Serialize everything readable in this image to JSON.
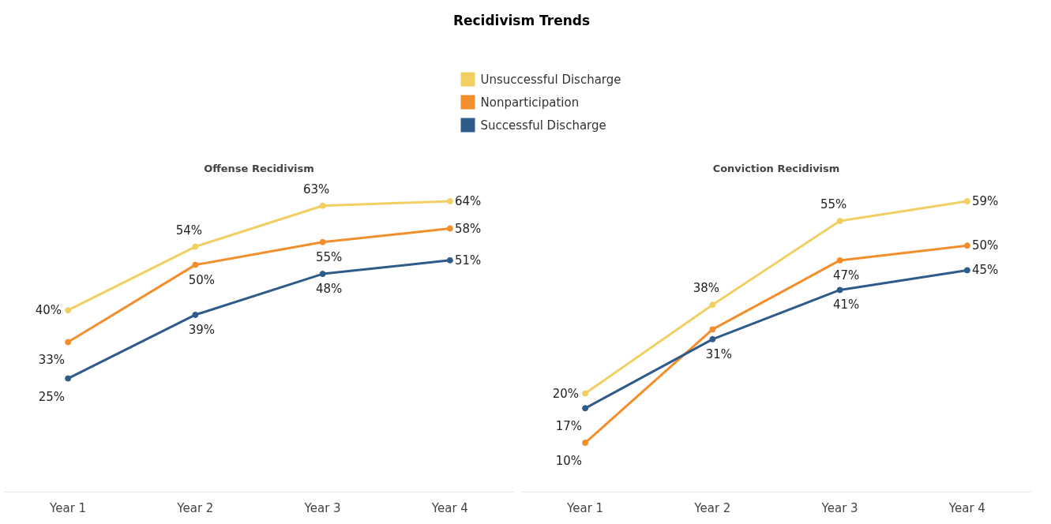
{
  "chart_data": [
    {
      "type": "line",
      "title": "Offense Recidivism",
      "annotations": [
        "Recidivism Trends"
      ],
      "legend": "top",
      "marker": "circle",
      "tick_labels": "x",
      "categories": [
        "Year 1",
        "Year 2",
        "Year 3",
        "Year 4"
      ],
      "series": [
        {
          "name": "Unsuccessful Discharge",
          "color": "#f1cf63",
          "values": [
            40,
            54,
            63,
            64
          ],
          "value_labels": [
            "40%",
            "54%",
            "63%",
            "64%"
          ]
        },
        {
          "name": "Nonparticipation",
          "color": "#f28e2b",
          "values": [
            33,
            50,
            55,
            58
          ],
          "value_labels": [
            "33%",
            "50%",
            "55%",
            "58%"
          ]
        },
        {
          "name": "Successful Discharge",
          "color": "#2f5b8a",
          "values": [
            25,
            39,
            48,
            51
          ],
          "value_labels": [
            "25%",
            "39%",
            "48%",
            "51%"
          ]
        }
      ]
    },
    {
      "type": "line",
      "title": "Conviction Recidivism",
      "marker": "circle",
      "tick_labels": "x",
      "categories": [
        "Year 1",
        "Year 2",
        "Year 3",
        "Year 4"
      ],
      "series": [
        {
          "color": "#f1cf63",
          "values": [
            20,
            38,
            55,
            59
          ],
          "value_labels": [
            "20%",
            "38%",
            "55%",
            "59%"
          ]
        },
        {
          "color": "#f28e2b",
          "values": [
            10,
            33,
            47,
            50
          ],
          "value_labels": [
            "10%",
            null,
            "47%",
            "50%"
          ]
        },
        {
          "color": "#2f5b8a",
          "values": [
            17,
            31,
            41,
            45
          ],
          "value_labels": [
            "17%",
            "31%",
            "41%",
            "45%"
          ]
        }
      ]
    }
  ]
}
